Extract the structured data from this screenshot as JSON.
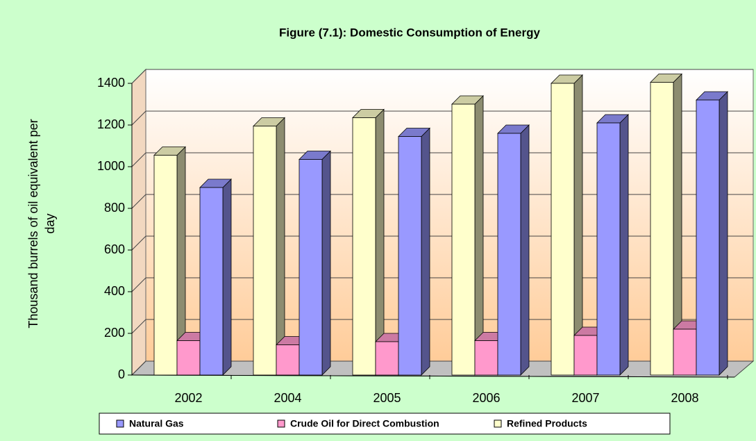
{
  "chart_data": {
    "type": "bar3d",
    "title": "Figure (7.1): Domestic Consumption of Energy",
    "ylabel": "Thousand burrels of oil equivalent per day",
    "categories": [
      "2002",
      "2004",
      "2005",
      "2006",
      "2007",
      "2008"
    ],
    "series": [
      {
        "name": "Natural Gas",
        "color": "#9999ff",
        "values": [
          900,
          1035,
          1145,
          1160,
          1210,
          1320
        ]
      },
      {
        "name": "Crude Oil for Direct Combustion",
        "color": "#ff99cc",
        "values": [
          165,
          145,
          160,
          165,
          190,
          220
        ]
      },
      {
        "name": "Refined Products",
        "color": "#ffffcc",
        "values": [
          1055,
          1195,
          1235,
          1300,
          1400,
          1405
        ]
      }
    ],
    "ylim": [
      0,
      1400
    ],
    "yticks": [
      0,
      200,
      400,
      600,
      800,
      1000,
      1200,
      1400
    ],
    "grid": true
  }
}
